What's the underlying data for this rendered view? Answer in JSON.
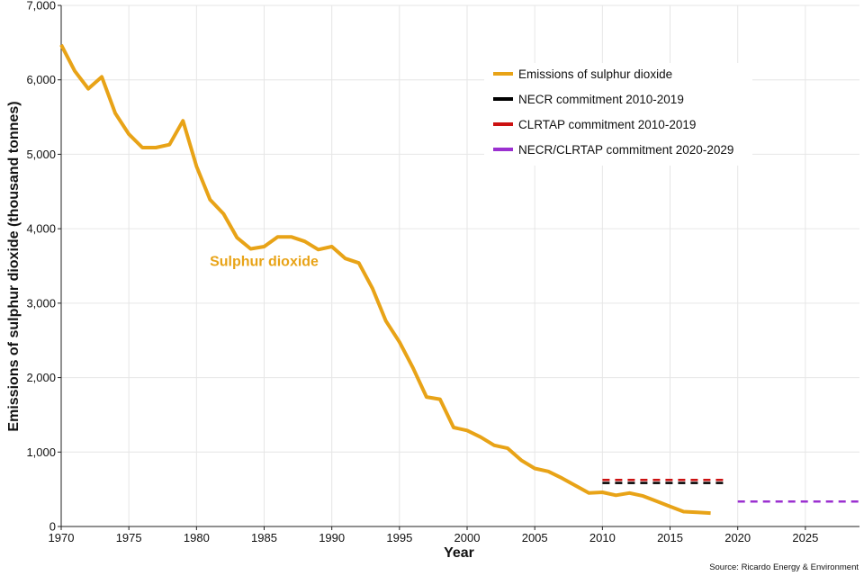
{
  "chart_data": {
    "type": "line",
    "xlabel": "Year",
    "ylabel": "Emissions of sulphur dioxide (thousand tonnes)",
    "xlim": [
      1970,
      2029
    ],
    "ylim": [
      0,
      7000
    ],
    "x_ticks": [
      1970,
      1975,
      1980,
      1985,
      1990,
      1995,
      2000,
      2005,
      2010,
      2015,
      2020,
      2025
    ],
    "y_ticks": [
      0,
      1000,
      2000,
      3000,
      4000,
      5000,
      6000,
      7000
    ],
    "y_tick_labels": [
      "0",
      "1,000",
      "2,000",
      "3,000",
      "4,000",
      "5,000",
      "6,000",
      "7,000"
    ],
    "grid": true,
    "legend_position": "top-right",
    "annotation": {
      "text": "Sulphur dioxide",
      "x": 1985,
      "y": 3500,
      "color": "#E8A317"
    },
    "source": "Source: Ricardo Energy & Environment",
    "series": [
      {
        "name": "Emissions of sulphur dioxide",
        "color": "#E8A317",
        "style": "solid",
        "x": [
          1970,
          1971,
          1972,
          1973,
          1974,
          1975,
          1976,
          1977,
          1978,
          1979,
          1980,
          1981,
          1982,
          1983,
          1984,
          1985,
          1986,
          1987,
          1988,
          1989,
          1990,
          1991,
          1992,
          1993,
          1994,
          1995,
          1996,
          1997,
          1998,
          1999,
          2000,
          2001,
          2002,
          2003,
          2004,
          2005,
          2006,
          2007,
          2008,
          2009,
          2010,
          2011,
          2012,
          2013,
          2014,
          2015,
          2016,
          2017,
          2018
        ],
        "y": [
          6470,
          6120,
          5880,
          6040,
          5550,
          5270,
          5090,
          5090,
          5130,
          5450,
          4840,
          4390,
          4200,
          3880,
          3730,
          3760,
          3890,
          3890,
          3830,
          3720,
          3760,
          3600,
          3540,
          3200,
          2760,
          2480,
          2130,
          1740,
          1710,
          1330,
          1290,
          1200,
          1090,
          1050,
          890,
          780,
          740,
          650,
          550,
          450,
          460,
          420,
          450,
          410,
          340,
          270,
          200,
          190,
          180
        ]
      },
      {
        "name": "NECR commitment 2010-2019",
        "color": "#000000",
        "style": "dashed",
        "x": [
          2010,
          2019
        ],
        "y": [
          585,
          585
        ]
      },
      {
        "name": "CLRTAP commitment 2010-2019",
        "color": "#CC1111",
        "style": "dashed",
        "x": [
          2010,
          2019
        ],
        "y": [
          625,
          625
        ]
      },
      {
        "name": "NECR/CLRTAP commitment 2020-2029",
        "color": "#9B30D0",
        "style": "dashed",
        "x": [
          2020,
          2029
        ],
        "y": [
          335,
          335
        ]
      }
    ]
  }
}
